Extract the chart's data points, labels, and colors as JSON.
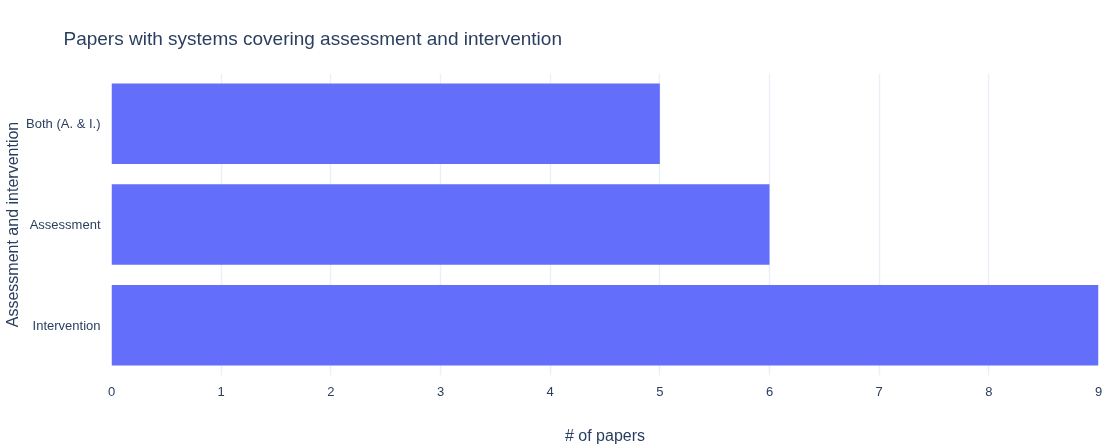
{
  "chart_data": {
    "type": "bar",
    "orientation": "horizontal",
    "title": "Papers with systems covering assessment and intervention",
    "xlabel": "# of papers",
    "ylabel": "Assessment and intervention",
    "categories": [
      "Both (A. & I.)",
      "Assessment",
      "Intervention"
    ],
    "values": [
      5,
      6,
      9
    ],
    "color": "#636efa",
    "xlim": [
      0,
      9
    ],
    "xticks": [
      0,
      1,
      2,
      3,
      4,
      5,
      6,
      7,
      8,
      9
    ],
    "grid": "x"
  }
}
